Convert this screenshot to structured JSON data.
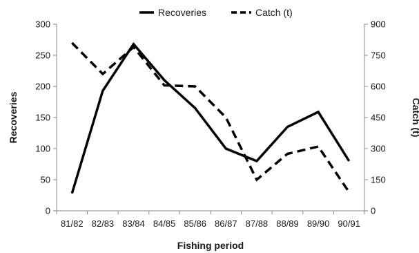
{
  "chart_data": {
    "type": "line",
    "title": "",
    "xlabel": "Fishing period",
    "ylabel": "Recoveries",
    "y2label": "Catch (t)",
    "categories": [
      "81/82",
      "82/83",
      "83/84",
      "84/85",
      "85/86",
      "86/87",
      "87/88",
      "88/89",
      "89/90",
      "90/91"
    ],
    "ylim": [
      0,
      300
    ],
    "y2lim": [
      0,
      900
    ],
    "yticks": [
      0,
      50,
      100,
      150,
      200,
      250,
      300
    ],
    "y2ticks": [
      0,
      150,
      300,
      450,
      600,
      750,
      900
    ],
    "grid": false,
    "legend_position": "top",
    "series": [
      {
        "name": "Recoveries",
        "axis": "left",
        "style": "solid",
        "color": "#000000",
        "values": [
          28,
          193,
          268,
          210,
          165,
          100,
          80,
          135,
          159,
          80
        ]
      },
      {
        "name": "Catch (t)",
        "axis": "right",
        "style": "dashed",
        "color": "#000000",
        "values": [
          810,
          660,
          790,
          605,
          600,
          450,
          150,
          275,
          310,
          90
        ]
      }
    ]
  }
}
